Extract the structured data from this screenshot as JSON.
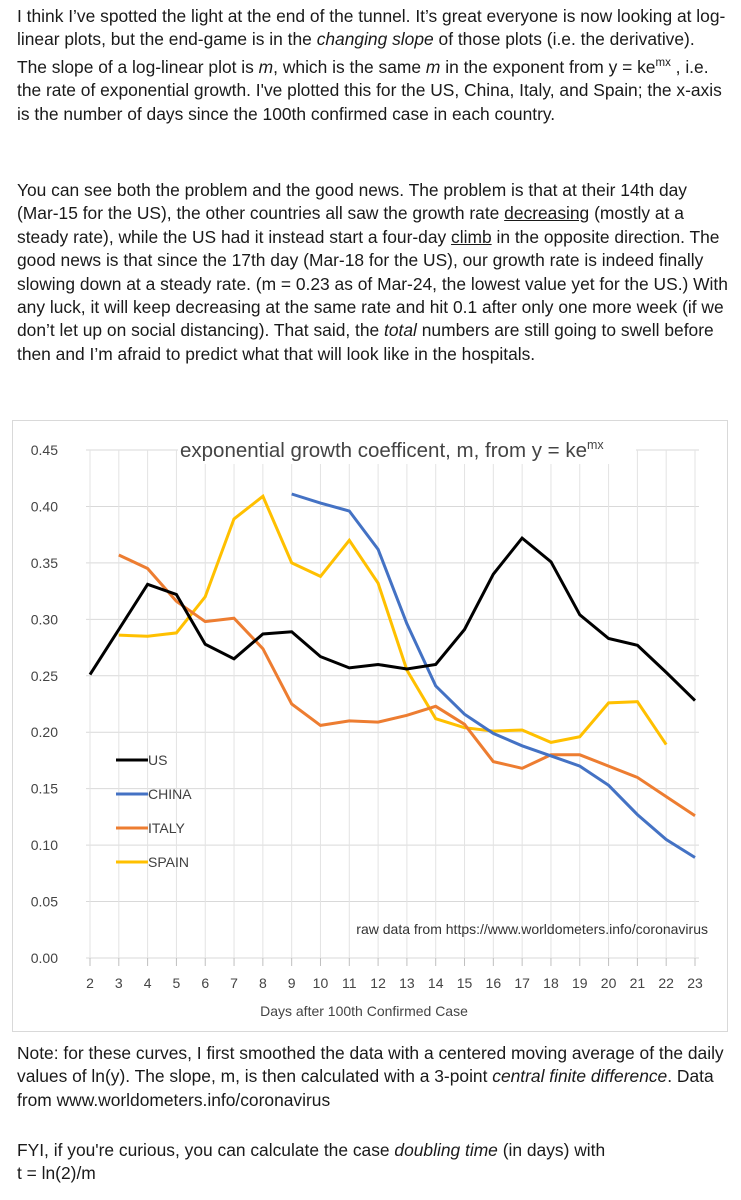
{
  "p1": {
    "a": "I think I’ve spotted the light at the end of the tunnel.  It’s great everyone is now looking at log-linear plots, but the end-game is in the ",
    "em1": "changing slope",
    "b": " of those plots (i.e. the derivative).  The slope of a log-linear plot is ",
    "m1": "m",
    "c": ", which is the same ",
    "m2": "m",
    "d": " in the exponent from y = ke",
    "sup": "mx",
    "e": " , i.e. the rate of exponential growth.  I've plotted this for the US, China, Italy, and Spain; the x-axis is the number of days since the 100th confirmed case in each country."
  },
  "p2": {
    "a": "You can see both the problem and the good news.  The problem is that at their 14th day (Mar-15 for the US), the other countries all saw the growth rate ",
    "u1": "decreasing",
    "b": " (mostly at a steady rate), while the US had it instead start a four-day ",
    "u2": "climb",
    "c": " in the opposite direction.  The good news is that since the 17th day (Mar-18 for the US), our growth rate is indeed finally slowing down at a steady rate.  (m = 0.23 as of Mar-24, the lowest value yet for the US.)  With any luck, it will keep decreasing at the same rate and hit 0.1 after only one more week (if we don’t let up on social distancing).  That said, the ",
    "em": "total",
    "d": " numbers are still going to swell before then and I’m afraid to predict what that will look like in the hospitals."
  },
  "p3": {
    "a": "Note: for these curves, I first smoothed the data with a centered moving average of the daily values of ln(y).  The slope, m, is then calculated with a 3-point ",
    "em": "central finite difference",
    "b": ".  Data from www.worldometers.info/coronavirus"
  },
  "p4": {
    "a": "FYI, if you're curious, you can calculate the case ",
    "em": "doubling time",
    "b": " (in days) with",
    "c": "t = ln(2)/m"
  },
  "chart_data": {
    "type": "line",
    "title": "exponential growth coefficent, m, from y = ke",
    "title_sup": "mx",
    "xlabel": "Days after 100th Confirmed Case",
    "ylabel": "",
    "annotation": "raw data from https://www.worldometers.info/coronavirus",
    "xlim": [
      2,
      23
    ],
    "ylim": [
      0,
      0.45
    ],
    "x_ticks": [
      "2",
      "3",
      "4",
      "5",
      "6",
      "7",
      "8",
      "9",
      "10",
      "11",
      "12",
      "13",
      "14",
      "15",
      "16",
      "17",
      "18",
      "19",
      "20",
      "21",
      "22",
      "23"
    ],
    "y_ticks": [
      "0.00",
      "0.05",
      "0.10",
      "0.15",
      "0.20",
      "0.25",
      "0.30",
      "0.35",
      "0.40",
      "0.45"
    ],
    "grid": true,
    "legend_position": "left",
    "series": [
      {
        "name": "US",
        "color": "#000000",
        "x": [
          2,
          3,
          4,
          5,
          6,
          7,
          8,
          9,
          10,
          11,
          12,
          13,
          14,
          15,
          16,
          17,
          18,
          19,
          20,
          21,
          22,
          23
        ],
        "y": [
          0.251,
          0.291,
          0.331,
          0.322,
          0.278,
          0.265,
          0.287,
          0.289,
          0.267,
          0.257,
          0.26,
          0.256,
          0.26,
          0.291,
          0.34,
          0.372,
          0.351,
          0.304,
          0.283,
          0.277,
          0.253,
          0.228
        ]
      },
      {
        "name": "CHINA",
        "color": "#4472C4",
        "x": [
          9,
          10,
          11,
          12,
          13,
          14,
          15,
          16,
          17,
          18,
          19,
          20,
          21,
          22,
          23
        ],
        "y": [
          0.411,
          0.403,
          0.396,
          0.362,
          0.296,
          0.241,
          0.216,
          0.199,
          0.188,
          0.179,
          0.17,
          0.153,
          0.127,
          0.105,
          0.089
        ]
      },
      {
        "name": "ITALY",
        "color": "#ED7D31",
        "x": [
          3,
          4,
          5,
          6,
          7,
          8,
          9,
          10,
          11,
          12,
          13,
          14,
          15,
          16,
          17,
          18,
          19,
          20,
          21,
          22,
          23
        ],
        "y": [
          0.357,
          0.345,
          0.316,
          0.298,
          0.301,
          0.274,
          0.225,
          0.206,
          0.21,
          0.209,
          0.215,
          0.223,
          0.207,
          0.174,
          0.168,
          0.18,
          0.18,
          0.17,
          0.16,
          0.143,
          0.126
        ]
      },
      {
        "name": "SPAIN",
        "color": "#FFC000",
        "x": [
          3,
          4,
          5,
          6,
          7,
          8,
          9,
          10,
          11,
          12,
          13,
          14,
          15,
          16,
          17,
          18,
          19,
          20,
          21,
          22
        ],
        "y": [
          0.286,
          0.285,
          0.288,
          0.32,
          0.389,
          0.409,
          0.35,
          0.338,
          0.37,
          0.332,
          0.255,
          0.212,
          0.204,
          0.201,
          0.202,
          0.191,
          0.196,
          0.226,
          0.227,
          0.189
        ]
      }
    ]
  }
}
